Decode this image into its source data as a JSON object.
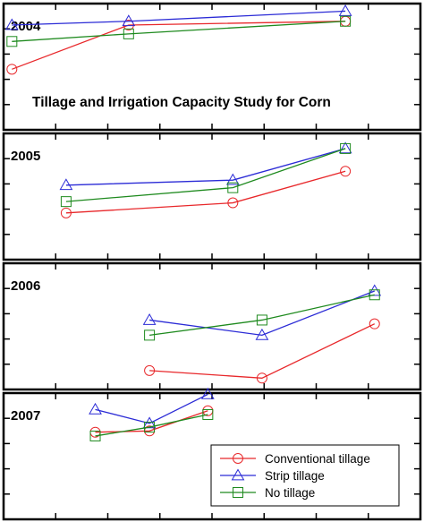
{
  "figure": {
    "title": "Tillage and Irrigation Capacity Study for Corn"
  },
  "legend": {
    "placement": "bottom-right of bottom panel",
    "entries": [
      {
        "label": "Conventional tillage",
        "color": "#e8282b",
        "marker": "circle"
      },
      {
        "label": "Strip tillage",
        "color": "#2b2bd6",
        "marker": "triangle"
      },
      {
        "label": "No tillage",
        "color": "#1e8a1e",
        "marker": "square"
      }
    ]
  },
  "chart_data": [
    {
      "type": "line",
      "panel_label": "2004",
      "x_unit": "relative irrigation capacity (unlabeled axis, 0-1)",
      "y_unit": "relative yield (unlabeled axis, 0-1 within panel)",
      "xlim": [
        0,
        1
      ],
      "ylim": [
        0,
        1
      ],
      "series": [
        {
          "name": "Conventional tillage",
          "x": [
            0.02,
            0.3,
            0.82
          ],
          "y": [
            0.48,
            0.83,
            0.86
          ]
        },
        {
          "name": "Strip tillage",
          "x": [
            0.02,
            0.3,
            0.82
          ],
          "y": [
            0.83,
            0.86,
            0.94
          ]
        },
        {
          "name": "No tillage",
          "x": [
            0.02,
            0.3,
            0.82
          ],
          "y": [
            0.7,
            0.76,
            0.86
          ]
        }
      ]
    },
    {
      "type": "line",
      "panel_label": "2005",
      "xlim": [
        0,
        1
      ],
      "ylim": [
        0,
        1
      ],
      "series": [
        {
          "name": "Conventional tillage",
          "x": [
            0.15,
            0.55,
            0.82
          ],
          "y": [
            0.37,
            0.45,
            0.7
          ]
        },
        {
          "name": "Strip tillage",
          "x": [
            0.15,
            0.55,
            0.82
          ],
          "y": [
            0.59,
            0.63,
            0.88
          ]
        },
        {
          "name": "No tillage",
          "x": [
            0.15,
            0.55,
            0.82
          ],
          "y": [
            0.46,
            0.57,
            0.88
          ]
        }
      ]
    },
    {
      "type": "line",
      "panel_label": "2006",
      "xlim": [
        0,
        1
      ],
      "ylim": [
        0,
        1
      ],
      "series": [
        {
          "name": "Conventional tillage",
          "x": [
            0.35,
            0.62,
            0.89
          ],
          "y": [
            0.15,
            0.09,
            0.52
          ]
        },
        {
          "name": "Strip tillage",
          "x": [
            0.35,
            0.62,
            0.89
          ],
          "y": [
            0.55,
            0.43,
            0.78
          ]
        },
        {
          "name": "No tillage",
          "x": [
            0.35,
            0.62,
            0.89
          ],
          "y": [
            0.43,
            0.55,
            0.75
          ]
        }
      ]
    },
    {
      "type": "line",
      "panel_label": "2007",
      "xlim": [
        0,
        1
      ],
      "ylim": [
        0,
        1
      ],
      "series": [
        {
          "name": "Conventional tillage",
          "x": [
            0.22,
            0.35,
            0.49
          ],
          "y": [
            0.69,
            0.7,
            0.86
          ]
        },
        {
          "name": "Strip tillage",
          "x": [
            0.22,
            0.35,
            0.49
          ],
          "y": [
            0.87,
            0.76,
            0.99
          ]
        },
        {
          "name": "No tillage",
          "x": [
            0.22,
            0.35,
            0.49
          ],
          "y": [
            0.66,
            0.73,
            0.83
          ]
        }
      ]
    }
  ]
}
